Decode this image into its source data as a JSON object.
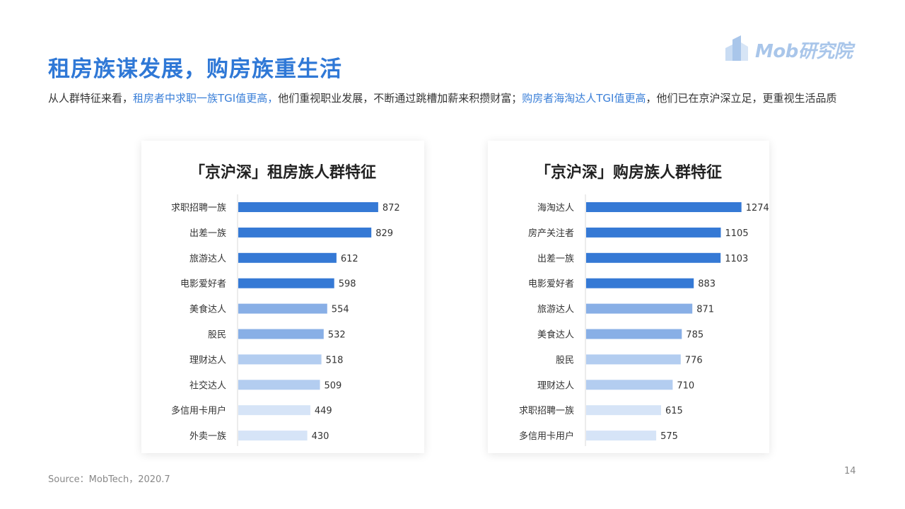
{
  "header": {
    "title": "租房族谋发展，购房族重生活",
    "logo_text": "Mob研究院",
    "logo_icon": "building-icon"
  },
  "summary": {
    "part1": "从人群特征来看，",
    "highlight1": "租房者中求职一族TGI值更高，",
    "part2": "他们重视职业发展，不断通过跳槽加薪来积攒财富；",
    "highlight2": "购房者海淘达人TGI值更高",
    "part3": "，他们已在京沪深立足，更重视生活品质"
  },
  "colors": {
    "title": "#2f78d6",
    "bar_tier1": "#3579d5",
    "bar_tier2": "#88afe6",
    "bar_tier3": "#b3cdf0",
    "bar_tier4": "#d6e4f7"
  },
  "chart_data": [
    {
      "type": "bar",
      "orientation": "horizontal",
      "title": "「京沪深」租房族人群特征",
      "categories": [
        "求职招聘一族",
        "出差一族",
        "旅游达人",
        "电影爱好者",
        "美食达人",
        "股民",
        "理财达人",
        "社交达人",
        "多信用卡用户",
        "外卖一族"
      ],
      "values": [
        872,
        829,
        612,
        598,
        554,
        532,
        518,
        509,
        449,
        430
      ],
      "color_tiers": [
        1,
        1,
        1,
        1,
        2,
        2,
        3,
        3,
        4,
        4
      ],
      "xlim": [
        0,
        1000
      ],
      "grid": false,
      "data_labels": true
    },
    {
      "type": "bar",
      "orientation": "horizontal",
      "title": "「京沪深」购房族人群特征",
      "categories": [
        "海淘达人",
        "房产关注者",
        "出差一族",
        "电影爱好者",
        "旅游达人",
        "美食达人",
        "股民",
        "理财达人",
        "求职招聘一族",
        "多信用卡用户"
      ],
      "values": [
        1274,
        1105,
        1103,
        883,
        871,
        785,
        776,
        710,
        615,
        575
      ],
      "color_tiers": [
        1,
        1,
        1,
        1,
        2,
        2,
        3,
        3,
        4,
        4
      ],
      "xlim": [
        0,
        1450
      ],
      "grid": false,
      "data_labels": true
    }
  ],
  "footer": {
    "source": "Source：MobTech，2020.7",
    "page_number": "14"
  }
}
